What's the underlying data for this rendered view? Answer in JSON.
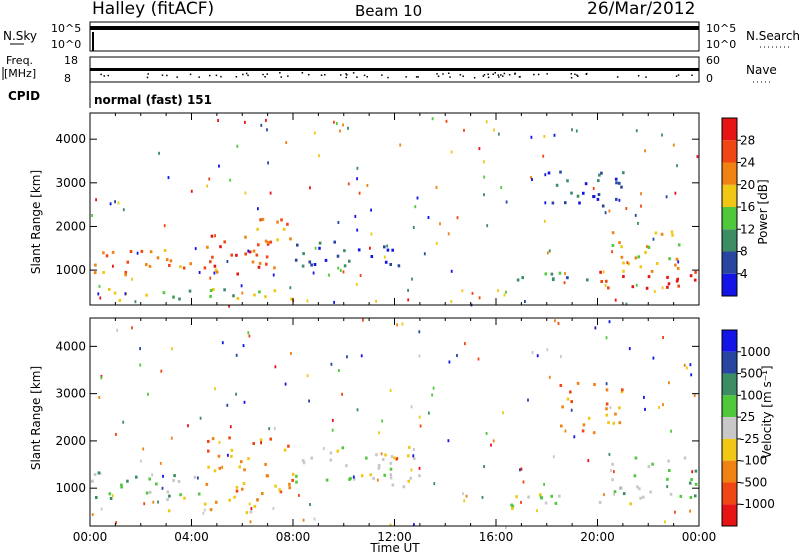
{
  "header": {
    "site": "Halley (fitACF)",
    "beam": "Beam 10",
    "date": "26/Mar/2012"
  },
  "top_panels": {
    "nsky_label": "N.Sky",
    "nsky_ticks": [
      "10^5",
      "10^0"
    ],
    "nsearch_label": "N.Search",
    "nsearch_ticks": [
      "10^5",
      "10^0"
    ],
    "freq_label_1": "Freq.",
    "freq_label_2": "[MHz]",
    "freq_ticks": [
      "18",
      "8"
    ],
    "nave_label": "Nave",
    "nave_ticks": [
      "60",
      "0"
    ],
    "cpid_label": "CPID",
    "cpid_value": "normal (fast) 151"
  },
  "colors": {
    "power": [
      "#1414e6",
      "#2846a0",
      "#3c8c64",
      "#50c83c",
      "#f0c814",
      "#f08214",
      "#f04614",
      "#e61414"
    ],
    "velocity": [
      "#1414e6",
      "#2846a0",
      "#3c8c64",
      "#50c83c",
      "#c8c8c8",
      "#f0c814",
      "#f08214",
      "#f04614",
      "#e61414"
    ]
  },
  "chart_data": [
    {
      "type": "heatmap",
      "panel": "power",
      "ylabel": "Slant Range [km]",
      "yticks": [
        1000,
        2000,
        3000,
        4000
      ],
      "ylim": [
        200,
        4600
      ],
      "xticks": [
        "00:00",
        "04:00",
        "08:00",
        "12:00",
        "16:00",
        "20:00",
        "00:00"
      ],
      "xlim_hours": [
        0,
        24
      ],
      "colorbar_label": "Power [dB]",
      "colorbar_ticks": [
        "4",
        "8",
        "12",
        "16",
        "20",
        "24",
        "28"
      ],
      "regions": [
        {
          "t0": 0.0,
          "t1": 5.0,
          "r0": 900,
          "r1": 1500,
          "level": 5
        },
        {
          "t0": 4.5,
          "t1": 7.5,
          "r0": 900,
          "r1": 1900,
          "level": 6
        },
        {
          "t0": 6.5,
          "t1": 8.2,
          "r0": 1500,
          "r1": 2200,
          "level": 5
        },
        {
          "t0": 8.0,
          "t1": 12.5,
          "r0": 1100,
          "r1": 1700,
          "level": 1
        },
        {
          "t0": 16.5,
          "t1": 20.0,
          "r0": 700,
          "r1": 1000,
          "level": 2
        },
        {
          "t0": 19.0,
          "t1": 24.0,
          "r0": 600,
          "r1": 1000,
          "level": 7
        },
        {
          "t0": 20.5,
          "t1": 23.5,
          "r0": 1000,
          "r1": 2000,
          "level": 4
        },
        {
          "t0": 18.0,
          "t1": 21.0,
          "r0": 2300,
          "r1": 3300,
          "level": 1
        },
        {
          "t0": 0.5,
          "t1": 8.5,
          "r0": 300,
          "r1": 600,
          "level": 3
        }
      ]
    },
    {
      "type": "heatmap",
      "panel": "velocity",
      "ylabel": "Slant Range [km]",
      "yticks": [
        1000,
        2000,
        3000,
        4000
      ],
      "ylim": [
        200,
        4600
      ],
      "xticks": [
        "00:00",
        "04:00",
        "08:00",
        "12:00",
        "16:00",
        "20:00",
        "00:00"
      ],
      "xlabel": "Time UT",
      "xlim_hours": [
        0,
        24
      ],
      "colorbar_label": "Velocity [m s⁻¹]",
      "colorbar_ticks": [
        "1000",
        "500",
        "100",
        "25",
        "-25",
        "-100",
        "-500",
        "-1000"
      ],
      "regions": [
        {
          "t0": 0.0,
          "t1": 4.5,
          "r0": 800,
          "r1": 1400,
          "level": 3
        },
        {
          "t0": 4.5,
          "t1": 8.0,
          "r0": 900,
          "r1": 2100,
          "level": 6
        },
        {
          "t0": 3.0,
          "t1": 7.0,
          "r0": 500,
          "r1": 900,
          "level": 5
        },
        {
          "t0": 8.0,
          "t1": 13.0,
          "r0": 1000,
          "r1": 1900,
          "level": 4
        },
        {
          "t0": 16.0,
          "t1": 21.5,
          "r0": 600,
          "r1": 900,
          "level": 4
        },
        {
          "t0": 20.5,
          "t1": 24.0,
          "r0": 800,
          "r1": 1700,
          "level": 3
        },
        {
          "t0": 18.5,
          "t1": 21.0,
          "r0": 2200,
          "r1": 3300,
          "level": 6
        }
      ]
    }
  ]
}
